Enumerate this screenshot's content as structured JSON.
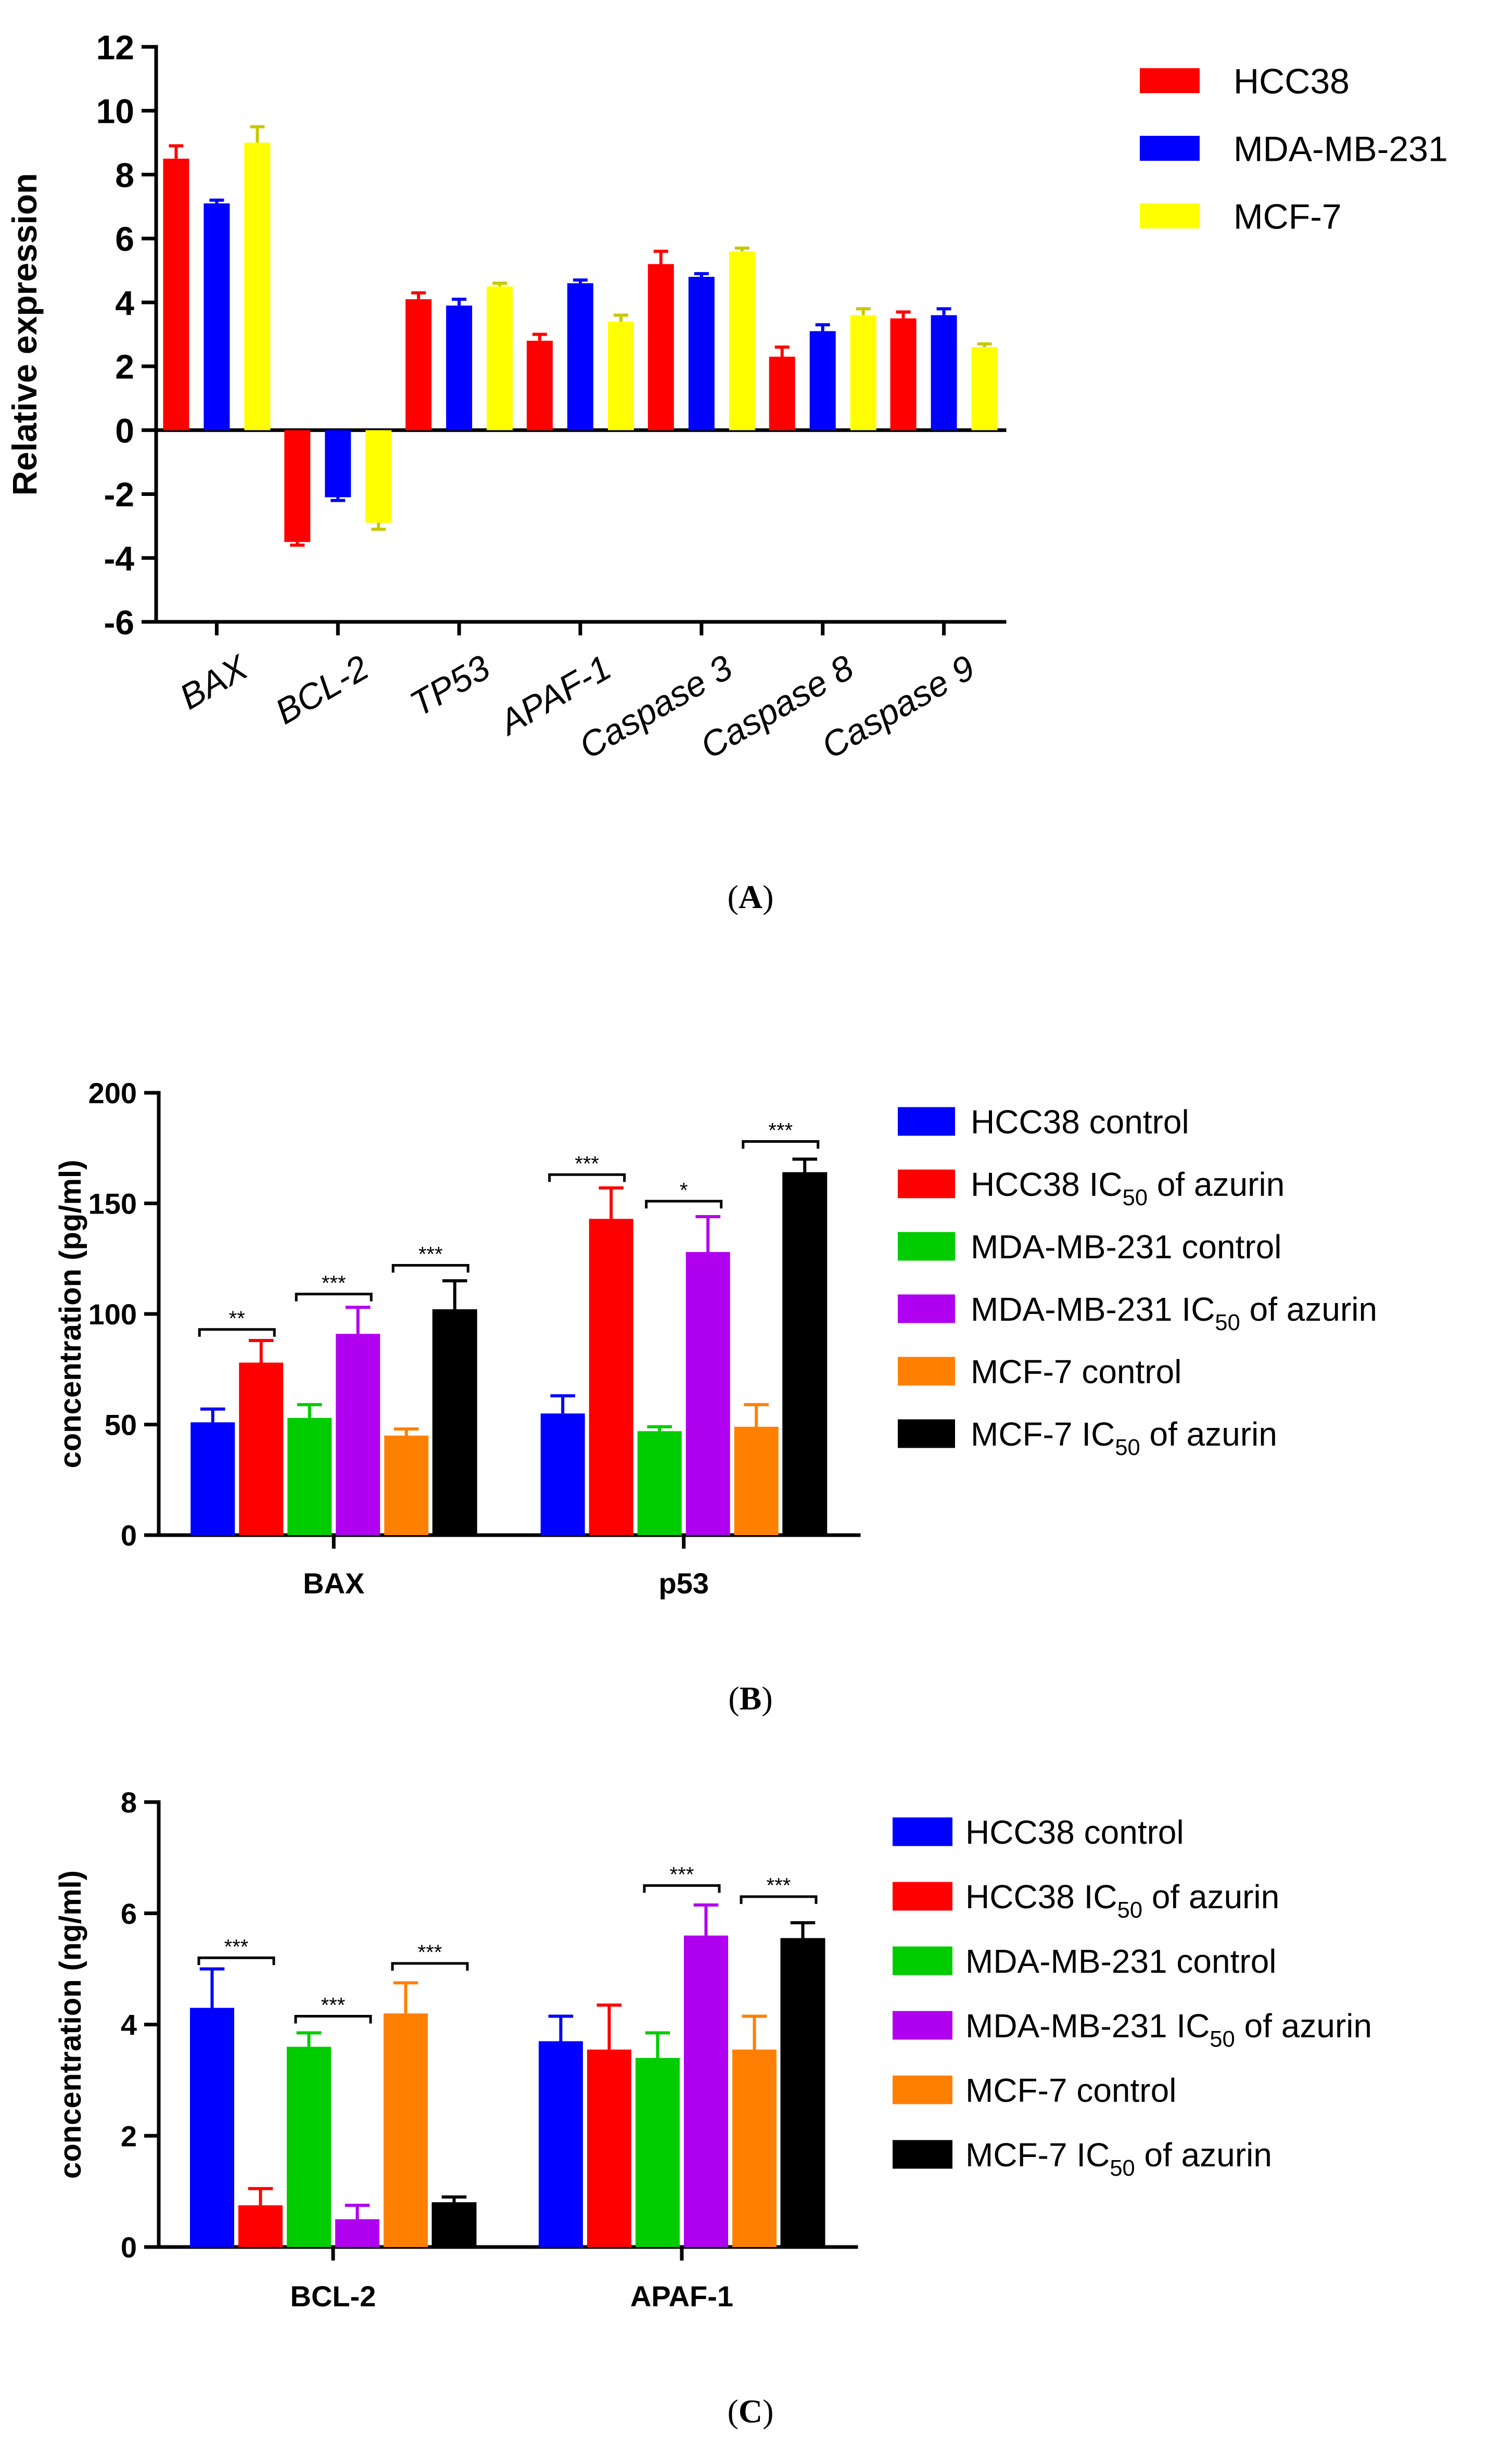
{
  "chart_data": [
    {
      "id": "A",
      "type": "bar",
      "panel_label": "A",
      "title": "",
      "ylabel": "Relative expression",
      "xlabel": "",
      "ylim": [
        -6,
        12
      ],
      "yticks": [
        -6,
        -4,
        -2,
        0,
        2,
        4,
        6,
        8,
        10,
        12
      ],
      "categories": [
        "BAX",
        "BCL-2",
        "TP53",
        "APAF-1",
        "Caspase 3",
        "Caspase 8",
        "Caspase 9"
      ],
      "category_style": "italic-rotated",
      "series": [
        {
          "name": "HCC38",
          "color": "#ff0000",
          "values": [
            8.5,
            -3.5,
            4.1,
            2.8,
            5.2,
            2.3,
            3.5
          ],
          "errors": [
            0.4,
            0.1,
            0.2,
            0.2,
            0.4,
            0.3,
            0.2
          ]
        },
        {
          "name": "MDA-MB-231",
          "color": "#0000ff",
          "values": [
            7.1,
            -2.1,
            3.9,
            4.6,
            4.8,
            3.1,
            3.6
          ],
          "errors": [
            0.1,
            0.1,
            0.2,
            0.1,
            0.1,
            0.2,
            0.2
          ]
        },
        {
          "name": "MCF-7",
          "color": "#ffff00",
          "values": [
            9.0,
            -2.9,
            4.5,
            3.4,
            5.6,
            3.6,
            2.6
          ],
          "errors": [
            0.5,
            0.2,
            0.1,
            0.2,
            0.1,
            0.2,
            0.1
          ]
        }
      ],
      "significance": []
    },
    {
      "id": "B",
      "type": "bar",
      "panel_label": "B",
      "title": "",
      "ylabel": "concentration (pg/ml)",
      "xlabel": "",
      "ylim": [
        0,
        200
      ],
      "yticks": [
        0,
        50,
        100,
        150,
        200
      ],
      "categories": [
        "BAX",
        "p53"
      ],
      "category_style": "bold",
      "series": [
        {
          "name": "HCC38 control",
          "label_main": "HCC38 control",
          "label_sub": "",
          "label_after": "",
          "color": "#0000ff",
          "values": [
            51,
            55
          ],
          "errors": [
            6,
            8
          ]
        },
        {
          "name": "HCC38 IC50 of azurin",
          "label_main": "HCC38 IC",
          "label_sub": "50",
          "label_after": " of azurin",
          "color": "#ff0000",
          "values": [
            78,
            143
          ],
          "errors": [
            10,
            14
          ]
        },
        {
          "name": "MDA-MB-231 control",
          "label_main": "MDA-MB-231 control",
          "label_sub": "",
          "label_after": "",
          "color": "#00cc00",
          "values": [
            53,
            47
          ],
          "errors": [
            6,
            2
          ]
        },
        {
          "name": "MDA-MB-231 IC50 of azurin",
          "label_main": "MDA-MB-231 IC",
          "label_sub": "50",
          "label_after": " of azurin",
          "color": "#b000f0",
          "values": [
            91,
            128
          ],
          "errors": [
            12,
            16
          ]
        },
        {
          "name": "MCF-7 control",
          "label_main": "MCF-7 control",
          "label_sub": "",
          "label_after": "",
          "color": "#ff8000",
          "values": [
            45,
            49
          ],
          "errors": [
            3,
            10
          ]
        },
        {
          "name": "MCF-7 IC50 of azurin",
          "label_main": "MCF-7 IC",
          "label_sub": "50",
          "label_after": " of azurin",
          "color": "#000000",
          "values": [
            102,
            164
          ],
          "errors": [
            13,
            6
          ]
        }
      ],
      "significance": [
        {
          "category": 0,
          "from": 0,
          "to": 1,
          "level": 93,
          "label": "**"
        },
        {
          "category": 0,
          "from": 2,
          "to": 3,
          "level": 109,
          "label": "***"
        },
        {
          "category": 0,
          "from": 4,
          "to": 5,
          "level": 122,
          "label": "***"
        },
        {
          "category": 1,
          "from": 0,
          "to": 1,
          "level": 163,
          "label": "***"
        },
        {
          "category": 1,
          "from": 2,
          "to": 3,
          "level": 151,
          "label": "*"
        },
        {
          "category": 1,
          "from": 4,
          "to": 5,
          "level": 178,
          "label": "***"
        }
      ]
    },
    {
      "id": "C",
      "type": "bar",
      "panel_label": "C",
      "title": "",
      "ylabel": "concentration (ng/ml)",
      "xlabel": "",
      "ylim": [
        0,
        8
      ],
      "yticks": [
        0,
        2,
        4,
        6,
        8
      ],
      "categories": [
        "BCL-2",
        "APAF-1"
      ],
      "category_style": "bold",
      "series": [
        {
          "name": "HCC38 control",
          "label_main": "HCC38 control",
          "label_sub": "",
          "label_after": "",
          "color": "#0000ff",
          "values": [
            4.3,
            3.7
          ],
          "errors": [
            0.7,
            0.45
          ]
        },
        {
          "name": "HCC38 IC50 of azurin",
          "label_main": "HCC38 IC",
          "label_sub": "50",
          "label_after": " of azurin",
          "color": "#ff0000",
          "values": [
            0.75,
            3.55
          ],
          "errors": [
            0.3,
            0.8
          ]
        },
        {
          "name": "MDA-MB-231 control",
          "label_main": "MDA-MB-231 control",
          "label_sub": "",
          "label_after": "",
          "color": "#00cc00",
          "values": [
            3.6,
            3.4
          ],
          "errors": [
            0.25,
            0.45
          ]
        },
        {
          "name": "MDA-MB-231 IC50 of azurin",
          "label_main": "MDA-MB-231 IC",
          "label_sub": "50",
          "label_after": " of azurin",
          "color": "#b000f0",
          "values": [
            0.5,
            5.6
          ],
          "errors": [
            0.25,
            0.55
          ]
        },
        {
          "name": "MCF-7 control",
          "label_main": "MCF-7 control",
          "label_sub": "",
          "label_after": "",
          "color": "#ff8000",
          "values": [
            4.2,
            3.55
          ],
          "errors": [
            0.55,
            0.6
          ]
        },
        {
          "name": "MCF-7 IC50 of azurin",
          "label_main": "MCF-7 IC",
          "label_sub": "50",
          "label_after": " of azurin",
          "color": "#000000",
          "values": [
            0.8,
            5.55
          ],
          "errors": [
            0.1,
            0.28
          ]
        }
      ],
      "significance": [
        {
          "category": 0,
          "from": 0,
          "to": 1,
          "level": 5.2,
          "label": "***"
        },
        {
          "category": 0,
          "from": 2,
          "to": 3,
          "level": 4.15,
          "label": "***"
        },
        {
          "category": 0,
          "from": 4,
          "to": 5,
          "level": 5.1,
          "label": "***"
        },
        {
          "category": 1,
          "from": 2,
          "to": 3,
          "level": 6.5,
          "label": "***"
        },
        {
          "category": 1,
          "from": 4,
          "to": 5,
          "level": 6.3,
          "label": "***"
        }
      ]
    }
  ]
}
